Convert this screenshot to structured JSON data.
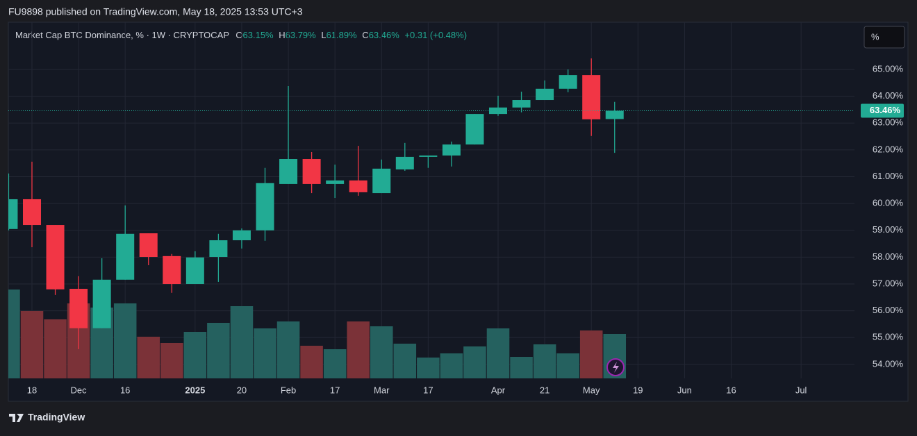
{
  "header": {
    "publisher": "FU9898 published on TradingView.com, May 18, 2025 13:53 UTC+3"
  },
  "legend": {
    "symbol": "Market Cap BTC Dominance, % · 1W · CRYPTOCAP",
    "open_key": "O",
    "open": "63.15%",
    "high_key": "H",
    "high": "63.79%",
    "low_key": "L",
    "low": "61.89%",
    "close_key": "C",
    "close": "63.46%",
    "change": "+0.31 (+0.48%)"
  },
  "ui": {
    "scale_button": "%",
    "footer_brand": "TradingView"
  },
  "chart_data": {
    "type": "candlestick",
    "categories": [
      null,
      "18",
      null,
      "Dec",
      null,
      "16",
      null,
      null,
      "2025",
      null,
      "20",
      null,
      "Feb",
      null,
      "17",
      null,
      "Mar",
      null,
      "17",
      null,
      null,
      "Apr",
      null,
      "21",
      null,
      "May",
      null,
      "19",
      null,
      "Jun",
      null,
      "16",
      null,
      null,
      "Jul",
      null,
      null
    ],
    "open": [
      59.05,
      60.16,
      59.2,
      56.82,
      55.35,
      57.16,
      58.89,
      58.04,
      57.0,
      58.01,
      58.63,
      59.0,
      60.73,
      61.66,
      60.73,
      60.86,
      60.39,
      61.27,
      61.74,
      61.79,
      62.2,
      63.34,
      63.58,
      63.86,
      64.28,
      64.79,
      63.15,
      null,
      null,
      null,
      null,
      null,
      null,
      null,
      null,
      null,
      null
    ],
    "high": [
      61.12,
      61.56,
      59.2,
      57.29,
      57.96,
      59.93,
      58.89,
      58.12,
      58.22,
      58.87,
      59.07,
      61.33,
      64.38,
      61.92,
      61.45,
      62.15,
      61.64,
      62.26,
      61.79,
      62.31,
      63.34,
      64.02,
      64.17,
      64.59,
      65.0,
      65.41,
      63.79,
      null,
      null,
      null,
      null,
      null,
      null,
      null,
      null,
      null,
      null
    ],
    "low": [
      59.0,
      58.37,
      56.59,
      54.57,
      55.35,
      57.16,
      57.7,
      56.67,
      57.0,
      57.08,
      58.32,
      58.61,
      60.73,
      60.39,
      60.21,
      60.29,
      60.39,
      61.22,
      61.33,
      61.38,
      62.2,
      63.27,
      63.4,
      63.86,
      64.15,
      62.52,
      61.89,
      null,
      null,
      null,
      null,
      null,
      null,
      null,
      null,
      null,
      null
    ],
    "close": [
      60.16,
      59.2,
      56.8,
      55.35,
      57.16,
      58.87,
      58.01,
      57.0,
      57.99,
      58.63,
      59.0,
      60.76,
      61.66,
      60.73,
      60.86,
      60.42,
      61.3,
      61.74,
      61.79,
      62.2,
      63.34,
      63.58,
      63.86,
      64.28,
      64.79,
      63.14,
      63.46,
      null,
      null,
      null,
      null,
      null,
      null,
      null,
      null,
      null,
      null
    ],
    "volume": [
      128,
      97,
      85,
      108,
      102,
      108,
      60,
      51,
      67,
      80,
      104,
      72,
      82,
      47,
      42,
      82,
      75,
      50,
      30,
      36,
      46,
      72,
      31,
      49,
      36,
      69,
      64,
      null,
      null,
      null,
      null,
      null,
      null,
      null,
      null,
      null,
      null
    ],
    "ylim": [
      53.48,
      66.76
    ],
    "yticks": [
      {
        "value": 54,
        "label": "54.00%"
      },
      {
        "value": 55,
        "label": "55.00%"
      },
      {
        "value": 56,
        "label": "56.00%"
      },
      {
        "value": 57,
        "label": "57.00%"
      },
      {
        "value": 58,
        "label": "58.00%"
      },
      {
        "value": 59,
        "label": "59.00%"
      },
      {
        "value": 60,
        "label": "60.00%"
      },
      {
        "value": 61,
        "label": "61.00%"
      },
      {
        "value": 62,
        "label": "62.00%"
      },
      {
        "value": 63,
        "label": "63.00%"
      },
      {
        "value": 64,
        "label": "64.00%"
      },
      {
        "value": 65,
        "label": "65.00%"
      }
    ],
    "last_price": {
      "value": 63.46,
      "label": "63.46%"
    },
    "up_color": "#22ab94",
    "down_color": "#f23645",
    "volume_up_color": "#25615f",
    "volume_down_color": "#7b3238",
    "grid": true
  }
}
